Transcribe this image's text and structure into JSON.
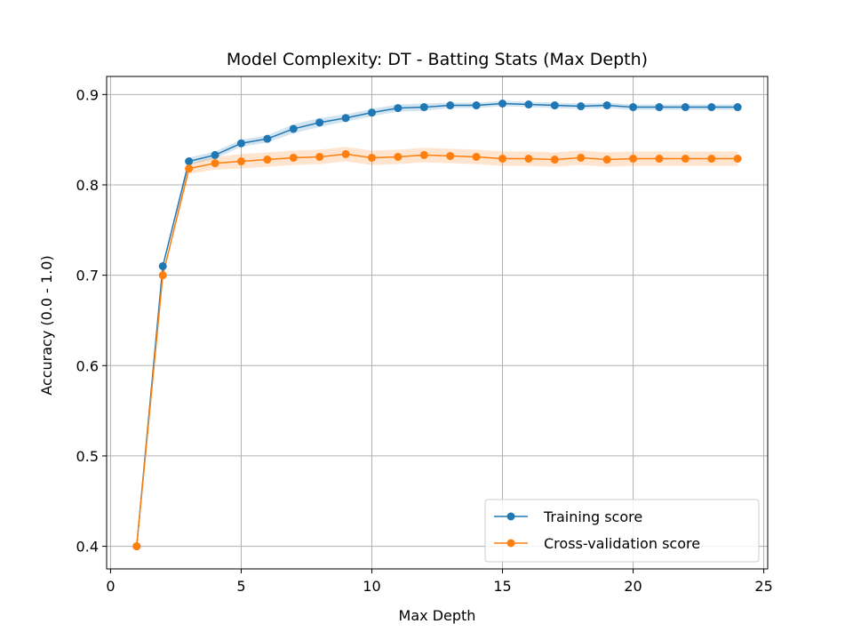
{
  "chart_data": {
    "type": "line",
    "title": "Model Complexity: DT - Batting Stats (Max Depth)",
    "xlabel": "Max Depth",
    "ylabel": "Accuracy (0.0 - 1.0)",
    "xlim": [
      -0.15,
      25.15
    ],
    "ylim": [
      0.375,
      0.92
    ],
    "xticks": [
      0,
      5,
      10,
      15,
      20,
      25
    ],
    "yticks": [
      0.4,
      0.5,
      0.6,
      0.7,
      0.8,
      0.9
    ],
    "grid": true,
    "legend_position": "lower-right",
    "x": [
      1,
      2,
      3,
      4,
      5,
      6,
      7,
      8,
      9,
      10,
      11,
      12,
      13,
      14,
      15,
      16,
      17,
      18,
      19,
      20,
      21,
      22,
      23,
      24
    ],
    "series": [
      {
        "name": "Training score",
        "color": "#1f77b4",
        "values": [
          0.4,
          0.71,
          0.826,
          0.833,
          0.846,
          0.851,
          0.862,
          0.869,
          0.874,
          0.88,
          0.885,
          0.886,
          0.888,
          0.888,
          0.89,
          0.889,
          0.888,
          0.887,
          0.888,
          0.886,
          0.886,
          0.886,
          0.886,
          0.886
        ],
        "band": [
          0.001,
          0.002,
          0.004,
          0.004,
          0.004,
          0.004,
          0.005,
          0.005,
          0.004,
          0.004,
          0.004,
          0.004,
          0.003,
          0.003,
          0.003,
          0.003,
          0.003,
          0.003,
          0.003,
          0.003,
          0.003,
          0.003,
          0.003,
          0.003
        ]
      },
      {
        "name": "Cross-validation score",
        "color": "#ff7f0e",
        "values": [
          0.4,
          0.7,
          0.818,
          0.824,
          0.826,
          0.828,
          0.83,
          0.831,
          0.834,
          0.83,
          0.831,
          0.833,
          0.832,
          0.831,
          0.829,
          0.829,
          0.828,
          0.83,
          0.828,
          0.829,
          0.829,
          0.829,
          0.829,
          0.829
        ],
        "band": [
          0.001,
          0.002,
          0.006,
          0.007,
          0.008,
          0.008,
          0.008,
          0.008,
          0.008,
          0.008,
          0.008,
          0.008,
          0.008,
          0.008,
          0.008,
          0.008,
          0.008,
          0.008,
          0.008,
          0.008,
          0.008,
          0.008,
          0.008,
          0.008
        ]
      }
    ]
  }
}
